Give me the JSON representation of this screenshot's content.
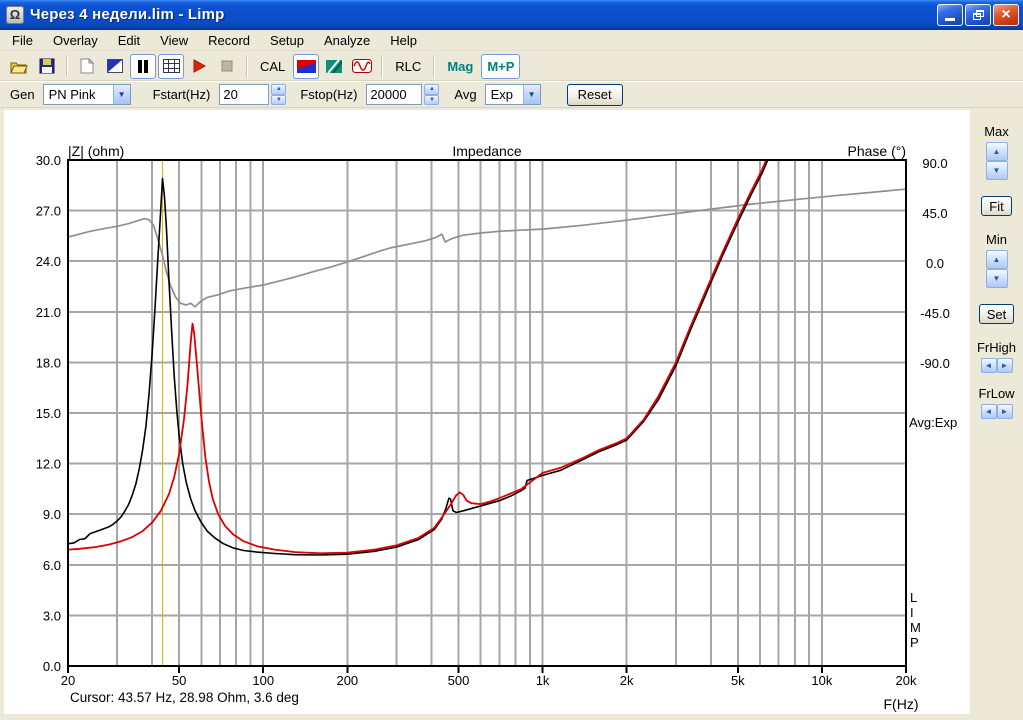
{
  "window": {
    "title": "Через 4 недели.lim - Limp"
  },
  "menu": {
    "items": [
      "File",
      "Overlay",
      "Edit",
      "View",
      "Record",
      "Setup",
      "Analyze",
      "Help"
    ]
  },
  "toolbar": {
    "cal_label": "CAL",
    "rlc_label": "RLC",
    "mag_label": "Mag",
    "mp_label": "M+P"
  },
  "controls": {
    "gen_label": "Gen",
    "gen_value": "PN Pink",
    "fstart_label": "Fstart(Hz)",
    "fstart_value": "20",
    "fstop_label": "Fstop(Hz)",
    "fstop_value": "20000",
    "avg_label": "Avg",
    "avg_value": "Exp",
    "reset_label": "Reset"
  },
  "sidebar": {
    "max_label": "Max",
    "fit_label": "Fit",
    "min_label": "Min",
    "set_label": "Set",
    "frhigh_label": "FrHigh",
    "frlow_label": "FrLow"
  },
  "status": {
    "cursor_text": "Cursor: 43.57 Hz, 28.98 Ohm, 3.6 deg"
  },
  "chart_data": {
    "type": "line",
    "title": "Impedance",
    "watermark": "LIMP",
    "avg_note": "Avg:Exp",
    "grid": true,
    "grid_color": "#a6a6a6",
    "left_axis": {
      "label": "|Z| (ohm)",
      "min": 0,
      "max": 30,
      "ticks": [
        {
          "v": 30,
          "label": "30.0"
        },
        {
          "v": 27,
          "label": "27.0"
        },
        {
          "v": 24,
          "label": "24.0"
        },
        {
          "v": 21,
          "label": "21.0"
        },
        {
          "v": 18,
          "label": "18.0"
        },
        {
          "v": 15,
          "label": "15.0"
        },
        {
          "v": 12,
          "label": "12.0"
        },
        {
          "v": 9,
          "label": "9.0"
        },
        {
          "v": 6,
          "label": "6.0"
        },
        {
          "v": 3,
          "label": "3.0"
        },
        {
          "v": 0,
          "label": "0.0"
        }
      ]
    },
    "right_axis": {
      "label": "Phase (°)",
      "min": -90,
      "max": 90,
      "ticks": [
        {
          "v": 90,
          "label": "90.0"
        },
        {
          "v": 45,
          "label": "45.0"
        },
        {
          "v": 0,
          "label": "0.0"
        },
        {
          "v": -45,
          "label": "-45.0"
        },
        {
          "v": -90,
          "label": "-90.0"
        }
      ]
    },
    "x_axis": {
      "label": "F(Hz)",
      "scale": "log",
      "min": 20,
      "max": 20000,
      "ticks": [
        {
          "v": 20,
          "label": "20"
        },
        {
          "v": 50,
          "label": "50"
        },
        {
          "v": 100,
          "label": "100"
        },
        {
          "v": 200,
          "label": "200"
        },
        {
          "v": 500,
          "label": "500"
        },
        {
          "v": 1000,
          "label": "1k"
        },
        {
          "v": 2000,
          "label": "2k"
        },
        {
          "v": 5000,
          "label": "5k"
        },
        {
          "v": 10000,
          "label": "10k"
        },
        {
          "v": 20000,
          "label": "20k"
        }
      ],
      "grid_freqs": [
        30,
        40,
        50,
        60,
        70,
        80,
        90,
        100,
        200,
        300,
        400,
        500,
        600,
        700,
        800,
        900,
        1000,
        2000,
        3000,
        4000,
        5000,
        6000,
        7000,
        8000,
        9000,
        10000
      ]
    },
    "cursor": {
      "freq": 43.57,
      "impedance_ohm": 28.98,
      "phase_deg": 3.6,
      "color": "#c9bc00"
    },
    "series": [
      {
        "name": "phase",
        "unit": "deg",
        "color": "#8f8f8f",
        "width": 1.7,
        "points": [
          [
            20,
            23.4
          ],
          [
            22,
            26
          ],
          [
            24,
            28.5
          ],
          [
            27,
            31
          ],
          [
            30,
            33
          ],
          [
            33,
            35.5
          ],
          [
            36,
            38.5
          ],
          [
            37.5,
            40
          ],
          [
            39,
            39
          ],
          [
            40.5,
            34
          ],
          [
            42,
            21
          ],
          [
            43.6,
            7
          ],
          [
            45,
            -8
          ],
          [
            46.5,
            -20
          ],
          [
            48.5,
            -30.5
          ],
          [
            50.5,
            -36.3
          ],
          [
            53,
            -37.8
          ],
          [
            55,
            -36.3
          ],
          [
            57,
            -39.3
          ],
          [
            59.5,
            -34.8
          ],
          [
            63,
            -31
          ],
          [
            68.5,
            -28.8
          ],
          [
            76,
            -25
          ],
          [
            85,
            -22.8
          ],
          [
            100,
            -19.8
          ],
          [
            115,
            -16
          ],
          [
            130,
            -12.5
          ],
          [
            150,
            -8
          ],
          [
            175,
            -3.5
          ],
          [
            200,
            1
          ],
          [
            230,
            6
          ],
          [
            260,
            10.5
          ],
          [
            284,
            13.5
          ],
          [
            340,
            17.5
          ],
          [
            380,
            20
          ],
          [
            415,
            23
          ],
          [
            436,
            26
          ],
          [
            448,
            18.9
          ],
          [
            460,
            20.5
          ],
          [
            480,
            22.5
          ],
          [
            520,
            25
          ],
          [
            600,
            27
          ],
          [
            700,
            28.5
          ],
          [
            830,
            29.5
          ],
          [
            1000,
            30.5
          ],
          [
            1400,
            34
          ],
          [
            2000,
            38.5
          ],
          [
            2800,
            43.5
          ],
          [
            4000,
            48.5
          ],
          [
            5600,
            53
          ],
          [
            8000,
            57
          ],
          [
            11000,
            60.5
          ],
          [
            15000,
            63.5
          ],
          [
            20000,
            66.5
          ]
        ]
      },
      {
        "name": "impedance",
        "unit": "ohm",
        "color": "#000000",
        "width": 1.6,
        "points": [
          [
            20,
            7.25
          ],
          [
            21,
            7.3
          ],
          [
            22,
            7.5
          ],
          [
            23,
            7.55
          ],
          [
            24,
            7.85
          ],
          [
            25,
            7.95
          ],
          [
            26,
            8.05
          ],
          [
            27,
            8.15
          ],
          [
            28,
            8.25
          ],
          [
            29,
            8.4
          ],
          [
            30,
            8.6
          ],
          [
            31,
            8.85
          ],
          [
            32,
            9.2
          ],
          [
            33,
            9.6
          ],
          [
            34,
            10.15
          ],
          [
            35,
            10.8
          ],
          [
            36,
            11.7
          ],
          [
            37,
            12.8
          ],
          [
            38,
            14.2
          ],
          [
            39,
            16.1
          ],
          [
            40,
            18.5
          ],
          [
            41,
            21.3
          ],
          [
            42,
            24.3
          ],
          [
            43,
            27.2
          ],
          [
            43.6,
            28.9
          ],
          [
            44.3,
            27.8
          ],
          [
            45,
            26
          ],
          [
            46,
            22.8
          ],
          [
            47,
            19.8
          ],
          [
            48,
            17.2
          ],
          [
            49,
            15.2
          ],
          [
            50,
            13.6
          ],
          [
            51.5,
            12
          ],
          [
            53,
            10.9
          ],
          [
            55,
            9.9
          ],
          [
            57,
            9.2
          ],
          [
            60,
            8.5
          ],
          [
            63,
            8
          ],
          [
            67,
            7.6
          ],
          [
            72,
            7.25
          ],
          [
            78,
            7
          ],
          [
            85,
            6.85
          ],
          [
            95,
            6.75
          ],
          [
            110,
            6.67
          ],
          [
            130,
            6.6
          ],
          [
            160,
            6.58
          ],
          [
            200,
            6.63
          ],
          [
            250,
            6.8
          ],
          [
            300,
            7.05
          ],
          [
            360,
            7.5
          ],
          [
            410,
            8.1
          ],
          [
            435,
            8.7
          ],
          [
            450,
            9.3
          ],
          [
            462,
            9.95
          ],
          [
            468,
            9.9
          ],
          [
            478,
            9.2
          ],
          [
            492,
            9.1
          ],
          [
            520,
            9.2
          ],
          [
            560,
            9.35
          ],
          [
            620,
            9.55
          ],
          [
            700,
            9.8
          ],
          [
            775,
            10.1
          ],
          [
            840,
            10.4
          ],
          [
            865,
            10.55
          ],
          [
            880,
            11
          ],
          [
            1000,
            11.3
          ],
          [
            1160,
            11.6
          ],
          [
            1380,
            12.2
          ],
          [
            1590,
            12.7
          ],
          [
            1830,
            13.1
          ],
          [
            2000,
            13.4
          ],
          [
            2300,
            14.5
          ],
          [
            2600,
            15.8
          ],
          [
            3000,
            17.8
          ],
          [
            3400,
            20
          ],
          [
            3900,
            22.3
          ],
          [
            4400,
            24.3
          ],
          [
            5000,
            26.3
          ],
          [
            5600,
            28
          ],
          [
            6100,
            29.2
          ],
          [
            6600,
            30.5
          ]
        ]
      },
      {
        "name": "impedance-overlay",
        "unit": "ohm",
        "color": "#dd0000",
        "width": 1.8,
        "points": [
          [
            20,
            6.9
          ],
          [
            22,
            6.95
          ],
          [
            25,
            7.05
          ],
          [
            28,
            7.2
          ],
          [
            31,
            7.4
          ],
          [
            34,
            7.65
          ],
          [
            37,
            8
          ],
          [
            40,
            8.5
          ],
          [
            43,
            9.2
          ],
          [
            46,
            10.2
          ],
          [
            48,
            11.2
          ],
          [
            50,
            12.6
          ],
          [
            52,
            14.6
          ],
          [
            53.5,
            16.6
          ],
          [
            55,
            19.2
          ],
          [
            55.8,
            20.3
          ],
          [
            56.6,
            19.7
          ],
          [
            58,
            17.7
          ],
          [
            60,
            14.8
          ],
          [
            62,
            12.4
          ],
          [
            64,
            10.9
          ],
          [
            66,
            9.9
          ],
          [
            69,
            9
          ],
          [
            73,
            8.3
          ],
          [
            78,
            7.8
          ],
          [
            85,
            7.4
          ],
          [
            95,
            7.1
          ],
          [
            110,
            6.9
          ],
          [
            130,
            6.75
          ],
          [
            160,
            6.68
          ],
          [
            200,
            6.72
          ],
          [
            250,
            6.9
          ],
          [
            300,
            7.15
          ],
          [
            360,
            7.6
          ],
          [
            410,
            8.2
          ],
          [
            440,
            8.9
          ],
          [
            470,
            9.6
          ],
          [
            490,
            10.1
          ],
          [
            505,
            10.3
          ],
          [
            520,
            10.15
          ],
          [
            535,
            9.8
          ],
          [
            555,
            9.65
          ],
          [
            600,
            9.6
          ],
          [
            650,
            9.75
          ],
          [
            700,
            9.95
          ],
          [
            775,
            10.25
          ],
          [
            840,
            10.5
          ],
          [
            1000,
            11.45
          ],
          [
            1160,
            11.75
          ],
          [
            1380,
            12.3
          ],
          [
            1590,
            12.8
          ],
          [
            1830,
            13.2
          ],
          [
            2000,
            13.5
          ],
          [
            2300,
            14.6
          ],
          [
            2600,
            16
          ],
          [
            3000,
            18
          ],
          [
            3400,
            20.2
          ],
          [
            3900,
            22.5
          ],
          [
            4400,
            24.5
          ],
          [
            5000,
            26.5
          ],
          [
            5600,
            28.2
          ],
          [
            6100,
            29.4
          ],
          [
            6500,
            30.5
          ]
        ]
      }
    ]
  }
}
